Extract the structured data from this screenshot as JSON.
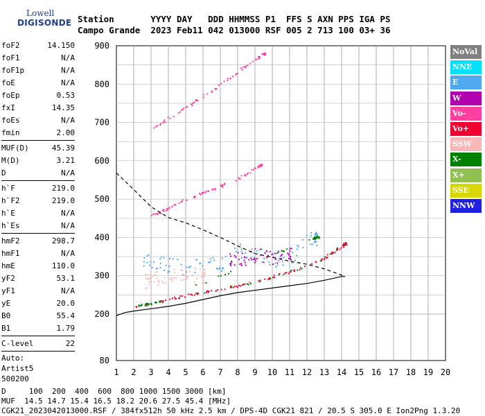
{
  "logo": {
    "line1": "Lowell",
    "line2": "DIGISONDE"
  },
  "header": {
    "labels": "Station       YYYY DAY   DDD HHMMSS P1  FFS S AXN PPS IGA PS",
    "values": "Campo Grande  2023 Feb11 042 013000 RSF 005 2 713 100 03+ 36"
  },
  "params": {
    "group1": [
      {
        "name": "foF2",
        "value": "14.150"
      },
      {
        "name": "foF1",
        "value": "N/A"
      },
      {
        "name": "foF1p",
        "value": "N/A"
      },
      {
        "name": "foE",
        "value": "N/A"
      },
      {
        "name": "foEp",
        "value": "0.53"
      },
      {
        "name": "fxI",
        "value": "14.35"
      },
      {
        "name": "foEs",
        "value": "N/A"
      },
      {
        "name": "fmin",
        "value": "2.00"
      }
    ],
    "group2": [
      {
        "name": "MUF(D)",
        "value": "45.39"
      },
      {
        "name": "M(D)",
        "value": "3.21"
      },
      {
        "name": "D",
        "value": "N/A"
      }
    ],
    "group3": [
      {
        "name": "h`F",
        "value": "219.0"
      },
      {
        "name": "h`F2",
        "value": "219.0"
      },
      {
        "name": "h`E",
        "value": "N/A"
      },
      {
        "name": "h`Es",
        "value": "N/A"
      }
    ],
    "group4": [
      {
        "name": "hmF2",
        "value": "298.7"
      },
      {
        "name": "hmF1",
        "value": "N/A"
      },
      {
        "name": "hmE",
        "value": "110.0"
      },
      {
        "name": "yF2",
        "value": "53.1"
      },
      {
        "name": "yF1",
        "value": "N/A"
      },
      {
        "name": "yE",
        "value": "20.0"
      },
      {
        "name": "B0",
        "value": "55.4"
      },
      {
        "name": "B1",
        "value": "1.79"
      }
    ],
    "clevel": {
      "name": "C-level",
      "value": "22"
    },
    "auto": [
      "Auto:",
      "Artist5",
      "500200"
    ]
  },
  "legend": [
    {
      "label": "NoVal",
      "color": "#808080"
    },
    {
      "label": "NNE",
      "color": "#00e0ff"
    },
    {
      "label": "E",
      "color": "#50a8f0"
    },
    {
      "label": "W",
      "color": "#b000b0"
    },
    {
      "label": "Vo-",
      "color": "#ff40a0"
    },
    {
      "label": "Vo+",
      "color": "#f00030"
    },
    {
      "label": "SSW",
      "color": "#f8b8b8"
    },
    {
      "label": "X-",
      "color": "#008000"
    },
    {
      "label": "X+",
      "color": "#90c050"
    },
    {
      "label": "SSE",
      "color": "#d8d800"
    },
    {
      "label": "NNW",
      "color": "#2020e0"
    }
  ],
  "footer": {
    "line1": "D     100  200  400  600  800 1000 1500 3000 [km]",
    "line2": "MUF  14.5 14.7 15.4 16.5 18.2 20.6 27.5 45.4 [MHz]",
    "line3": "CGK21_2023042013000.RSF / 384fx512h 50 kHz 2.5 km / DPS-4D CGK21 821 / 20.5 S 305.0 E Ion2Png 1.3.20"
  },
  "chart_data": {
    "type": "scatter",
    "title": "",
    "xlabel": "",
    "ylabel": "",
    "xlim": [
      1,
      20
    ],
    "ylim": [
      80,
      900
    ],
    "x_ticks": [
      1,
      2,
      3,
      4,
      5,
      6,
      7,
      8,
      9,
      10,
      11,
      12,
      13,
      14,
      15,
      16,
      17,
      18,
      19,
      20
    ],
    "y_ticks": [
      80,
      200,
      300,
      400,
      500,
      600,
      700,
      800,
      900
    ],
    "grid": true,
    "legend_position": "right",
    "series": [
      {
        "color": "#f00030",
        "points": [
          [
            2.0,
            219
          ],
          [
            3.0,
            228
          ],
          [
            4.0,
            240
          ],
          [
            5.0,
            250
          ],
          [
            6.0,
            258
          ],
          [
            7.0,
            266
          ],
          [
            8.0,
            275
          ],
          [
            9.0,
            285
          ],
          [
            10.0,
            298
          ],
          [
            11.0,
            312
          ],
          [
            12.0,
            328
          ],
          [
            13.0,
            347
          ],
          [
            13.5,
            362
          ],
          [
            14.0,
            378
          ],
          [
            14.2,
            385
          ]
        ]
      },
      {
        "color": "#ff40a0",
        "points": [
          [
            2.9,
            455
          ],
          [
            3.5,
            467
          ],
          [
            4.0,
            480
          ],
          [
            5.0,
            500
          ],
          [
            6.0,
            518
          ],
          [
            7.0,
            535
          ],
          [
            8.0,
            555
          ],
          [
            8.8,
            575
          ],
          [
            9.3,
            590
          ]
        ]
      },
      {
        "color": "#ff40a0",
        "points": [
          [
            3.0,
            685
          ],
          [
            4.0,
            712
          ],
          [
            5.0,
            740
          ],
          [
            6.0,
            770
          ],
          [
            7.0,
            800
          ],
          [
            8.0,
            833
          ],
          [
            9.0,
            865
          ],
          [
            9.5,
            880
          ]
        ]
      },
      {
        "color": "#50a8f0",
        "points": [
          [
            2.5,
            340
          ],
          [
            3.2,
            335
          ],
          [
            4.0,
            330
          ],
          [
            5.0,
            322
          ],
          [
            6.0,
            330
          ],
          [
            7.0,
            333
          ],
          [
            8.0,
            368
          ],
          [
            9.0,
            358
          ],
          [
            10.0,
            340
          ],
          [
            11.0,
            350
          ],
          [
            12.0,
            395
          ],
          [
            12.5,
            400
          ]
        ]
      },
      {
        "color": "#f8b8b8",
        "points": [
          [
            2.6,
            285
          ],
          [
            3.0,
            292
          ],
          [
            4.0,
            300
          ],
          [
            5.0,
            308
          ],
          [
            6.0,
            300
          ]
        ]
      },
      {
        "color": "#b000b0",
        "points": [
          [
            7.5,
            340
          ],
          [
            8.0,
            345
          ],
          [
            8.5,
            350
          ],
          [
            9.0,
            355
          ],
          [
            10.0,
            350
          ],
          [
            11.0,
            355
          ]
        ]
      },
      {
        "color": "#008000",
        "points": [
          [
            2.2,
            222
          ],
          [
            3.0,
            230
          ],
          [
            12.3,
            398
          ],
          [
            12.6,
            402
          ]
        ]
      }
    ],
    "profile_solid": [
      [
        1.0,
        196
      ],
      [
        1.5,
        204
      ],
      [
        2.0,
        208
      ],
      [
        3.0,
        214
      ],
      [
        4.0,
        220
      ],
      [
        5.0,
        228
      ],
      [
        6.0,
        238
      ],
      [
        7.0,
        248
      ],
      [
        8.0,
        256
      ],
      [
        9.0,
        262
      ],
      [
        10.0,
        268
      ],
      [
        11.0,
        274
      ],
      [
        12.0,
        280
      ],
      [
        13.0,
        288
      ],
      [
        14.0,
        298
      ],
      [
        14.2,
        298
      ]
    ],
    "profile_dashed": [
      [
        1.0,
        568
      ],
      [
        2.0,
        525
      ],
      [
        3.0,
        480
      ],
      [
        4.0,
        452
      ],
      [
        5.0,
        438
      ],
      [
        6.0,
        420
      ],
      [
        7.0,
        400
      ],
      [
        8.0,
        378
      ],
      [
        9.0,
        358
      ],
      [
        10.0,
        348
      ],
      [
        11.0,
        338
      ],
      [
        12.0,
        330
      ],
      [
        13.0,
        318
      ],
      [
        13.8,
        305
      ],
      [
        14.2,
        298
      ]
    ]
  }
}
